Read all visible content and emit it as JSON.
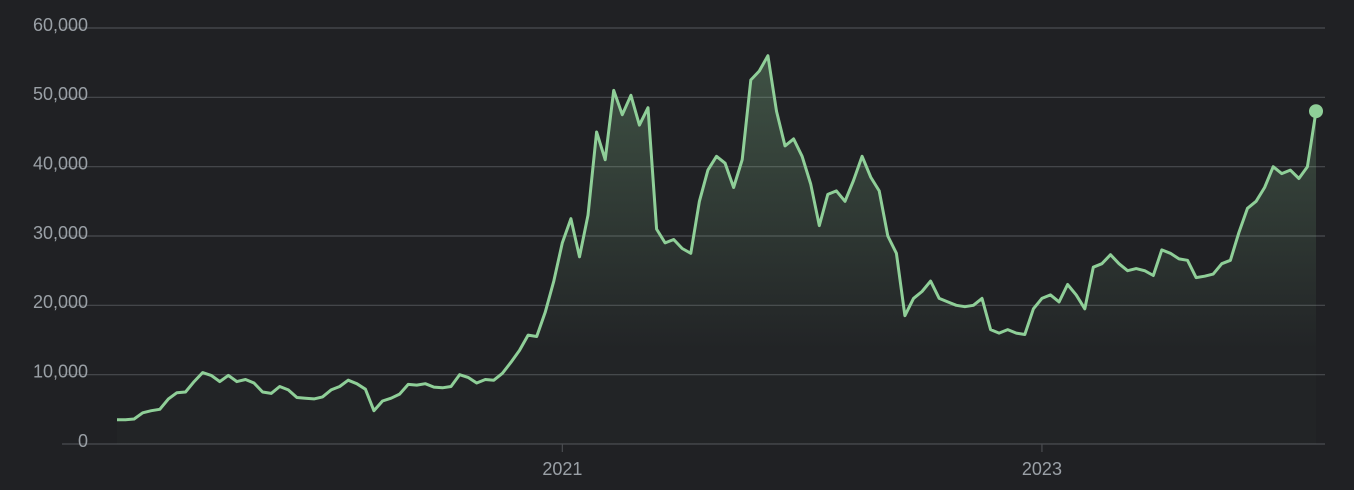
{
  "chart_data": {
    "type": "line",
    "categories": [
      null,
      null,
      null,
      null,
      null,
      null,
      null,
      null,
      null,
      null,
      null,
      null,
      null,
      null,
      null,
      null,
      null,
      null,
      null,
      null,
      null,
      null,
      null,
      null,
      null,
      null,
      null,
      null,
      null,
      null,
      null,
      null,
      null,
      null,
      null,
      null,
      null,
      null,
      null,
      null,
      null,
      null,
      null,
      null,
      null,
      null,
      null,
      null,
      null,
      null,
      null,
      null,
      "2021",
      null,
      null,
      null,
      null,
      null,
      null,
      null,
      null,
      null,
      null,
      null,
      null,
      null,
      null,
      null,
      null,
      null,
      null,
      null,
      null,
      null,
      null,
      null,
      null,
      null,
      null,
      null,
      null,
      null,
      null,
      null,
      null,
      null,
      null,
      null,
      null,
      null,
      null,
      null,
      null,
      null,
      null,
      null,
      null,
      null,
      null,
      null,
      null,
      null,
      null,
      null,
      null,
      null,
      null,
      null,
      "2023",
      null,
      null,
      null,
      null,
      null,
      null,
      null,
      null,
      null,
      null,
      null,
      null,
      null,
      null,
      null,
      null,
      null,
      null,
      null,
      null,
      null,
      null,
      null,
      null,
      null,
      null,
      null,
      null,
      null,
      null,
      null,
      null
    ],
    "series": [
      {
        "color": "#8fcf98",
        "values": [
          3500,
          3500,
          3600,
          4500,
          4800,
          5000,
          6500,
          7400,
          7500,
          9000,
          10300,
          9900,
          9000,
          9900,
          9000,
          9300,
          8800,
          7500,
          7300,
          8300,
          7800,
          6700,
          6600,
          6500,
          6800,
          7800,
          8300,
          9200,
          8700,
          7900,
          4800,
          6200,
          6600,
          7200,
          8600,
          8500,
          8700,
          8200,
          8100,
          8300,
          10000,
          9600,
          8800,
          9300,
          9200,
          10200,
          11800,
          13500,
          15700,
          15500,
          19000,
          23500,
          29000,
          32500,
          27000,
          33000,
          45000,
          41000,
          51000,
          47500,
          50300,
          46000,
          48500,
          31000,
          29000,
          29500,
          28200,
          27500,
          35000,
          39500,
          41500,
          40500,
          37000,
          41000,
          52500,
          53800,
          56000,
          48000,
          43000,
          44000,
          41500,
          37500,
          31500,
          36000,
          36500,
          35000,
          38000,
          41500,
          38500,
          36500,
          30000,
          27500,
          18500,
          21000,
          22000,
          23500,
          21000,
          20500,
          20000,
          19800,
          20000,
          21000,
          16500,
          16000,
          16500,
          16000,
          15800,
          19500,
          21000,
          21500,
          20500,
          23000,
          21500,
          19500,
          25500,
          26000,
          27300,
          26000,
          25000,
          25300,
          25000,
          24300,
          28000,
          27500,
          26700,
          26500,
          24000,
          24200,
          24500,
          26000,
          26500,
          30500,
          34000,
          35000,
          37000,
          40000,
          39000,
          39500,
          38300,
          40000,
          48000
        ]
      }
    ],
    "ylim": [
      0,
      60000
    ],
    "yticks": [
      0,
      {
        "value": 10000,
        "label": "10,000"
      },
      {
        "value": 20000,
        "label": "20,000"
      },
      {
        "value": 30000,
        "label": "30,000"
      },
      {
        "value": 40000,
        "label": "40,000"
      },
      {
        "value": 50000,
        "label": "50,000"
      },
      {
        "value": 60000,
        "label": "60,000"
      }
    ],
    "grid": true
  }
}
